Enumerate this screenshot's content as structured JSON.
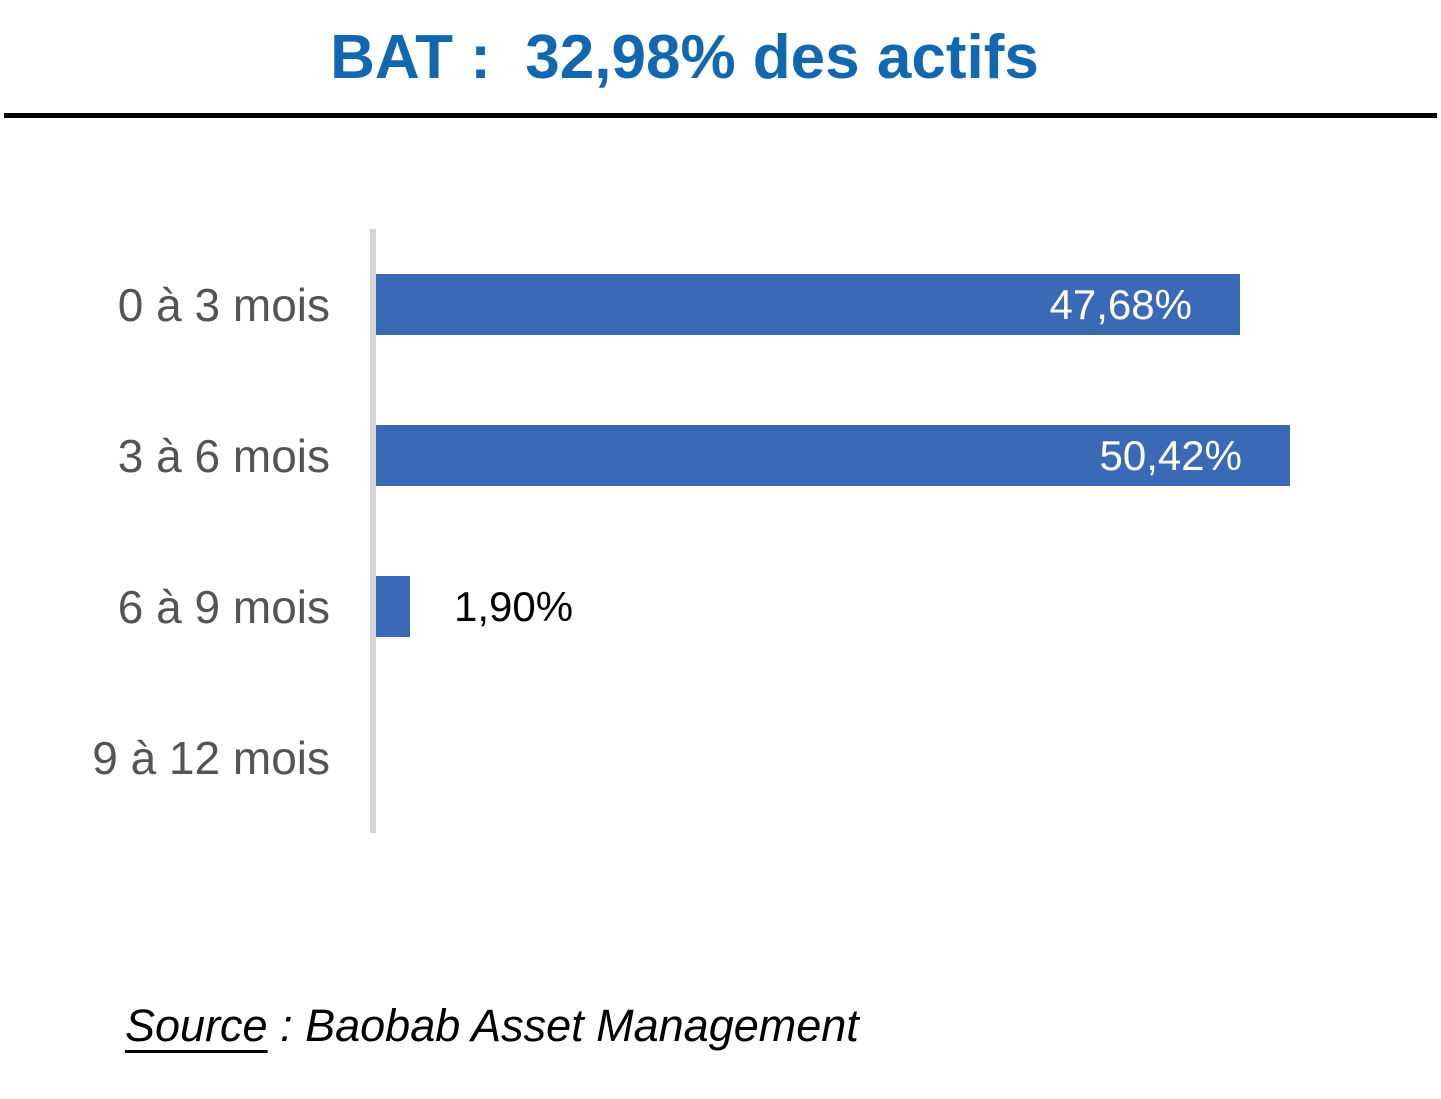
{
  "title": "BAT :  32,98% des actifs",
  "colors": {
    "title": "#1267B1",
    "bar": "#3A69B5",
    "axis_line": "#D6D6D6",
    "category_label": "#545454",
    "value_label_inside": "#FFFFFF",
    "value_label_outside": "#000000",
    "divider": "#000000"
  },
  "chart_data": {
    "type": "bar",
    "orientation": "horizontal",
    "title": "BAT :  32,98% des actifs",
    "categories": [
      "0 à 3 mois",
      "3 à 6 mois",
      "6 à 9 mois",
      "9 à 12 mois"
    ],
    "values": [
      47.68,
      50.42,
      1.9,
      0
    ],
    "value_labels": [
      "47,68%",
      "50,42%",
      "1,90%",
      ""
    ],
    "label_inside": [
      true,
      true,
      false,
      false
    ],
    "xlabel": "",
    "ylabel": "",
    "xlim": [
      0,
      58.8
    ],
    "grid": false,
    "legend": false
  },
  "source": {
    "label": "Source",
    "separator": " : ",
    "name": "Baobab Asset Management"
  }
}
